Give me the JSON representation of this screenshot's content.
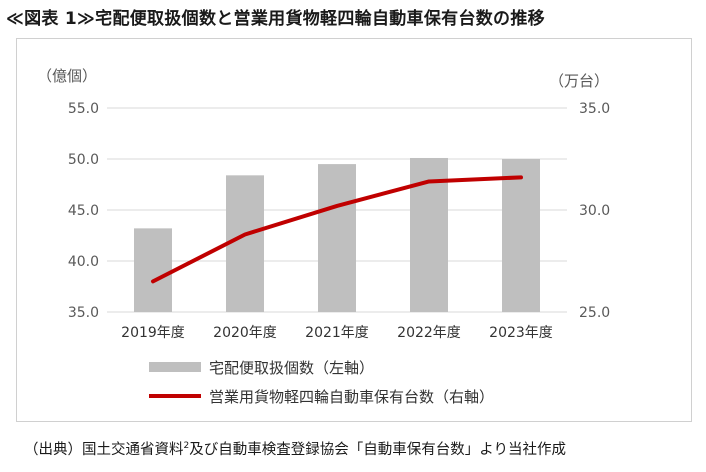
{
  "title": "≪図表 1≫宅配便取扱個数と営業用貨物軽四輪自動車保有台数の推移",
  "source": {
    "before": "（出典）国土交通省資料",
    "sup": "2",
    "after": "及び自動車検査登録協会「自動車保有台数」より当社作成"
  },
  "colors": {
    "bar": "#bfbfbf",
    "line": "#c00000",
    "grid": "#d9d9d9",
    "text": "#595959"
  },
  "chart_data": {
    "type": "bar+line",
    "categories": [
      "2019年度",
      "2020年度",
      "2021年度",
      "2022年度",
      "2023年度"
    ],
    "series": [
      {
        "name": "宅配便取扱個数（左軸）",
        "type": "bar",
        "axis": "left",
        "values": [
          43.2,
          48.4,
          49.5,
          50.1,
          50.0
        ]
      },
      {
        "name": "営業用貨物軽四輪自動車保有台数（右軸）",
        "type": "line",
        "axis": "right",
        "values": [
          26.5,
          28.8,
          30.2,
          31.4,
          31.6
        ]
      }
    ],
    "left_axis": {
      "unit": "（億個）",
      "min": 35.0,
      "max": 55.0,
      "ticks": [
        "35.0",
        "40.0",
        "45.0",
        "50.0",
        "55.0"
      ]
    },
    "right_axis": {
      "unit": "（万台）",
      "min": 25.0,
      "max": 35.0,
      "ticks": [
        "25.0",
        "30.0",
        "35.0"
      ]
    },
    "legend": [
      "宅配便取扱個数（左軸）",
      "営業用貨物軽四輪自動車保有台数（右軸）"
    ]
  }
}
